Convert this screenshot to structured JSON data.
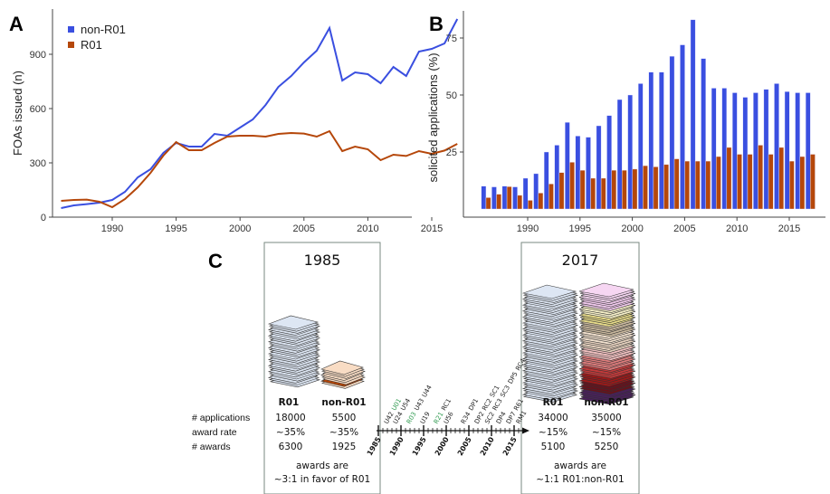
{
  "chart_data": [
    {
      "panel_label": "A",
      "type": "line",
      "ylabel": "FOAs issued (n)",
      "xlabel": "",
      "xlim": [
        1985,
        2018
      ],
      "ylim": [
        0,
        1150
      ],
      "x_ticks": [
        1990,
        1995,
        2000,
        2005,
        2010,
        2015
      ],
      "y_ticks": [
        0,
        300,
        600,
        900
      ],
      "legend_placement": "top-left",
      "grid": false,
      "x": [
        1986,
        1987,
        1988,
        1989,
        1990,
        1991,
        1992,
        1993,
        1994,
        1995,
        1996,
        1997,
        1998,
        1999,
        2000,
        2001,
        2002,
        2003,
        2004,
        2005,
        2006,
        2007,
        2008,
        2009,
        2010,
        2011,
        2012,
        2013,
        2014,
        2015,
        2016,
        2017
      ],
      "series": [
        {
          "name": "non-R01",
          "color": "#3a4fe0",
          "values": [
            50,
            65,
            72,
            80,
            95,
            140,
            220,
            265,
            355,
            410,
            390,
            390,
            460,
            450,
            495,
            540,
            620,
            720,
            780,
            855,
            920,
            1045,
            755,
            800,
            790,
            740,
            830,
            780,
            915,
            930,
            960,
            1095
          ]
        },
        {
          "name": "R01",
          "color": "#b5470a",
          "values": [
            90,
            95,
            97,
            85,
            55,
            100,
            165,
            245,
            340,
            415,
            370,
            370,
            410,
            445,
            450,
            450,
            445,
            460,
            465,
            462,
            445,
            475,
            365,
            390,
            375,
            315,
            345,
            338,
            365,
            350,
            368,
            405
          ]
        }
      ]
    },
    {
      "panel_label": "B",
      "type": "bar",
      "ylabel": "solicited applications (%)",
      "xlabel": "",
      "xlim": [
        1985,
        2018
      ],
      "ylim": [
        0,
        87
      ],
      "x_ticks": [
        1990,
        1995,
        2000,
        2005,
        2010,
        2015
      ],
      "y_ticks": [
        25,
        50,
        75
      ],
      "grid": false,
      "categories": [
        1986,
        1987,
        1988,
        1989,
        1990,
        1991,
        1992,
        1993,
        1994,
        1995,
        1996,
        1997,
        1998,
        1999,
        2000,
        2001,
        2002,
        2003,
        2004,
        2005,
        2006,
        2007,
        2008,
        2009,
        2010,
        2011,
        2012,
        2013,
        2014,
        2015,
        2016,
        2017
      ],
      "series": [
        {
          "color": "#3a4fe0",
          "values": [
            10,
            9.7,
            10,
            9.7,
            13.5,
            15.5,
            25,
            28,
            38,
            32,
            31.5,
            36.5,
            41,
            48,
            50,
            55,
            60,
            60,
            67,
            72,
            83,
            66,
            53,
            53,
            51,
            49,
            51,
            52.5,
            55,
            51.5,
            51,
            51
          ]
        },
        {
          "color": "#b5470a",
          "values": [
            5,
            6.5,
            9.8,
            6,
            3.8,
            7,
            11,
            16,
            20.5,
            17,
            13.5,
            13.5,
            17,
            17,
            17.5,
            19,
            18.5,
            19.5,
            22,
            21,
            21,
            21,
            23,
            27,
            24,
            24,
            28,
            24,
            27,
            21,
            23,
            24
          ]
        }
      ]
    }
  ],
  "panel_c": {
    "label": "C",
    "left": {
      "year": "1985",
      "col_headers": [
        "R01",
        "non-R01"
      ],
      "rows": [
        {
          "label": "# applications",
          "values": [
            "18000",
            "5500"
          ]
        },
        {
          "label": "award rate",
          "values": [
            "~35%",
            "~35%"
          ]
        },
        {
          "label": "# awards",
          "values": [
            "6300",
            "1925"
          ]
        }
      ],
      "summary": [
        "awards are",
        "~3:1 in favor of R01"
      ]
    },
    "right": {
      "year": "2017",
      "col_headers": [
        "R01",
        "non-R01"
      ],
      "rows": [
        {
          "values": [
            "34000",
            "35000"
          ]
        },
        {
          "values": [
            "~15%",
            "~15%"
          ]
        },
        {
          "values": [
            "5100",
            "5250"
          ]
        }
      ],
      "summary": [
        "awards are",
        "~1:1 R01:non-R01"
      ]
    },
    "timeline": {
      "years": [
        "1985",
        "1990",
        "1995",
        "2000",
        "2005",
        "2010",
        "2015"
      ],
      "mechanisms": [
        {
          "code": "U42",
          "year": 1987,
          "color": "#222"
        },
        {
          "code": "U01",
          "year": 1988,
          "color": "#2e9a4f"
        },
        {
          "code": "U24",
          "year": 1989,
          "color": "#222"
        },
        {
          "code": "U54",
          "year": 1990.5,
          "color": "#222"
        },
        {
          "code": "R03",
          "year": 1992,
          "color": "#2e9a4f"
        },
        {
          "code": "U43",
          "year": 1992.5,
          "color": "#222"
        },
        {
          "code": "U44",
          "year": 1993.3,
          "color": "#222"
        },
        {
          "code": "U19",
          "year": 1995,
          "color": "#222"
        },
        {
          "code": "R21",
          "year": 1998,
          "color": "#2e9a4f"
        },
        {
          "code": "RC1",
          "year": 1999.2,
          "color": "#222"
        },
        {
          "code": "U56",
          "year": 2000.2,
          "color": "#222"
        },
        {
          "code": "R34",
          "year": 2004,
          "color": "#222"
        },
        {
          "code": "DP1",
          "year": 2005,
          "color": "#222"
        },
        {
          "code": "RC2",
          "year": 2008,
          "color": "#222"
        },
        {
          "code": "DP2",
          "year": 2007,
          "color": "#222"
        },
        {
          "code": "SC1",
          "year": 2008.2,
          "color": "#222"
        },
        {
          "code": "RC3",
          "year": 2009.5,
          "color": "#222"
        },
        {
          "code": "SC2",
          "year": 2009.3,
          "color": "#222"
        },
        {
          "code": "SC3",
          "year": 2010.3,
          "color": "#222"
        },
        {
          "code": "DP5",
          "year": 2010.5,
          "color": "#222"
        },
        {
          "code": "RC4",
          "year": 2010.8,
          "color": "#222"
        },
        {
          "code": "DP4",
          "year": 2011.8,
          "color": "#222"
        },
        {
          "code": "DP7",
          "year": 2014,
          "color": "#222"
        },
        {
          "code": "R61",
          "year": 2015.2,
          "color": "#222"
        },
        {
          "code": "RM1",
          "year": 2016.2,
          "color": "#222"
        }
      ]
    },
    "stack_colors": {
      "r01": "#dde6f3",
      "non_r01_1985": "#f8dcc4",
      "non_r01_2017": [
        "#4a1f5c",
        "#6b0f1a",
        "#a01818",
        "#c73a3a",
        "#e07d7d",
        "#f2c1c1",
        "#e8d3c0",
        "#f4e3d0",
        "#c9b89e",
        "#e8dc8a",
        "#f6f0c8",
        "#f0c9ec",
        "#f6d6f2"
      ]
    }
  }
}
